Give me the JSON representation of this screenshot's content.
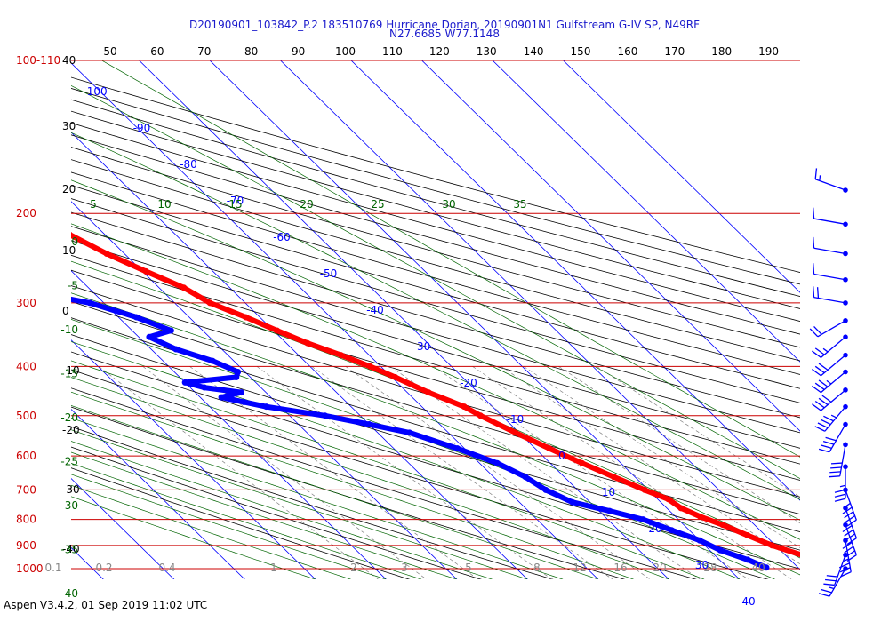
{
  "header": {
    "line1": "D20190901_103842_P.2 183510769 Hurricane Dorian, 20190901N1 Gulfstream G-IV SP, N49RF",
    "line2": "N27.6685 W77.1148"
  },
  "footer": {
    "text": "Aspen V3.4.2, 01 Sep 2019  11:02 UTC"
  },
  "colors": {
    "temperature": "#ff0000",
    "dewpoint": "#0000ff",
    "isobar": "#cc0000",
    "isotherm": "#0000ff",
    "dry_adiabat": "#000000",
    "moist_adiabat": "#006400",
    "mixing_ratio": "#808080",
    "wind_barb": "#0000ff"
  },
  "chart_data": {
    "type": "skew-t",
    "pressure_axis": {
      "unit": "hPa",
      "scale": "log",
      "range": [
        100,
        1000
      ],
      "labels": [
        "100-110",
        "200",
        "300",
        "400",
        "500",
        "600",
        "700",
        "800",
        "900",
        "1000"
      ],
      "label_pressures": [
        100,
        200,
        300,
        400,
        500,
        600,
        700,
        800,
        900,
        1000
      ]
    },
    "height_axis": {
      "unit": "kft",
      "labels": [
        "40",
        "30",
        "20",
        "10",
        "0",
        "-10",
        "-20",
        "-30",
        "-40"
      ]
    },
    "top_axis_ticks": [
      "50",
      "60",
      "70",
      "80",
      "90",
      "100",
      "110",
      "120",
      "130",
      "140",
      "150",
      "160",
      "170",
      "180",
      "190"
    ],
    "isotherm_labels": [
      {
        "t": -100,
        "label": "-100"
      },
      {
        "t": -90,
        "label": "-90"
      },
      {
        "t": -80,
        "label": "-80"
      },
      {
        "t": -70,
        "label": "-70"
      },
      {
        "t": -60,
        "label": "-60"
      },
      {
        "t": -50,
        "label": "-50"
      },
      {
        "t": -40,
        "label": "-40"
      },
      {
        "t": -30,
        "label": "-30"
      },
      {
        "t": -20,
        "label": "-20"
      },
      {
        "t": -10,
        "label": "-10"
      },
      {
        "t": 0,
        "label": "0"
      },
      {
        "t": 10,
        "label": "10"
      },
      {
        "t": 20,
        "label": "20"
      },
      {
        "t": 30,
        "label": "30"
      },
      {
        "t": 40,
        "label": "40"
      }
    ],
    "moist_adiabat_labels_top": [
      "5",
      "10",
      "15",
      "20",
      "25",
      "30",
      "35"
    ],
    "moist_adiabat_labels_left": [
      "0",
      "-5",
      "-10",
      "-15",
      "-20",
      "-25",
      "-30",
      "-35",
      "-40"
    ],
    "mixing_ratio_labels": [
      "0.1",
      "0.2",
      "0.4",
      "1",
      "2",
      "3",
      "5",
      "8",
      "12",
      "16",
      "20",
      "28",
      "40"
    ],
    "temperature_profile": [
      [
        180,
        -42.0
      ],
      [
        190,
        -41.5
      ],
      [
        200,
        -39.5
      ],
      [
        210,
        -37.0
      ],
      [
        220,
        -35.0
      ],
      [
        240,
        -32.5
      ],
      [
        260,
        -29.5
      ],
      [
        280,
        -26.5
      ],
      [
        300,
        -25.0
      ],
      [
        320,
        -22.0
      ],
      [
        340,
        -19.5
      ],
      [
        360,
        -17.0
      ],
      [
        380,
        -14.0
      ],
      [
        400,
        -11.5
      ],
      [
        420,
        -9.5
      ],
      [
        450,
        -7.0
      ],
      [
        480,
        -4.0
      ],
      [
        500,
        -3.0
      ],
      [
        540,
        -0.5
      ],
      [
        580,
        2.0
      ],
      [
        620,
        4.5
      ],
      [
        660,
        7.0
      ],
      [
        700,
        9.5
      ],
      [
        730,
        11.5
      ],
      [
        760,
        12.0
      ],
      [
        790,
        13.5
      ],
      [
        820,
        15.5
      ],
      [
        860,
        17.5
      ],
      [
        900,
        19.5
      ],
      [
        950,
        23.0
      ],
      [
        995,
        27.0
      ]
    ],
    "dewpoint_profile": [
      [
        200,
        -50.0
      ],
      [
        210,
        -48.0
      ],
      [
        230,
        -48.0
      ],
      [
        250,
        -47.0
      ],
      [
        270,
        -47.5
      ],
      [
        290,
        -46.5
      ],
      [
        300,
        -42.0
      ],
      [
        320,
        -37.5
      ],
      [
        340,
        -34.5
      ],
      [
        350,
        -38.5
      ],
      [
        370,
        -36.5
      ],
      [
        390,
        -33.0
      ],
      [
        410,
        -31.0
      ],
      [
        420,
        -32.0
      ],
      [
        430,
        -40.0
      ],
      [
        440,
        -38.0
      ],
      [
        450,
        -33.5
      ],
      [
        460,
        -37.0
      ],
      [
        470,
        -34.5
      ],
      [
        480,
        -32.0
      ],
      [
        500,
        -25.0
      ],
      [
        520,
        -20.0
      ],
      [
        540,
        -15.5
      ],
      [
        580,
        -11.0
      ],
      [
        620,
        -7.5
      ],
      [
        660,
        -5.5
      ],
      [
        700,
        -4.5
      ],
      [
        740,
        -2.5
      ],
      [
        770,
        1.5
      ],
      [
        800,
        5.0
      ],
      [
        840,
        7.5
      ],
      [
        880,
        10.0
      ],
      [
        920,
        11.5
      ],
      [
        960,
        14.0
      ],
      [
        995,
        15.5
      ]
    ],
    "isolated_point": [
      170,
      -43.5
    ],
    "wind_barbs": [
      {
        "p": 180,
        "dir": 290,
        "speed": 15
      },
      {
        "p": 210,
        "dir": 280,
        "speed": 10
      },
      {
        "p": 240,
        "dir": 280,
        "speed": 10
      },
      {
        "p": 270,
        "dir": 280,
        "speed": 10
      },
      {
        "p": 300,
        "dir": 280,
        "speed": 20
      },
      {
        "p": 325,
        "dir": 240,
        "speed": 20
      },
      {
        "p": 350,
        "dir": 230,
        "speed": 25
      },
      {
        "p": 380,
        "dir": 230,
        "speed": 30
      },
      {
        "p": 410,
        "dir": 230,
        "speed": 35
      },
      {
        "p": 445,
        "dir": 230,
        "speed": 40
      },
      {
        "p": 480,
        "dir": 220,
        "speed": 45
      },
      {
        "p": 520,
        "dir": 210,
        "speed": 40
      },
      {
        "p": 570,
        "dir": 190,
        "speed": 40
      },
      {
        "p": 630,
        "dir": 180,
        "speed": 35
      },
      {
        "p": 700,
        "dir": 160,
        "speed": 45
      },
      {
        "p": 760,
        "dir": 160,
        "speed": 40
      },
      {
        "p": 820,
        "dir": 160,
        "speed": 40
      },
      {
        "p": 880,
        "dir": 170,
        "speed": 35
      },
      {
        "p": 940,
        "dir": 200,
        "speed": 30
      },
      {
        "p": 1000,
        "dir": 210,
        "speed": 25
      }
    ]
  }
}
